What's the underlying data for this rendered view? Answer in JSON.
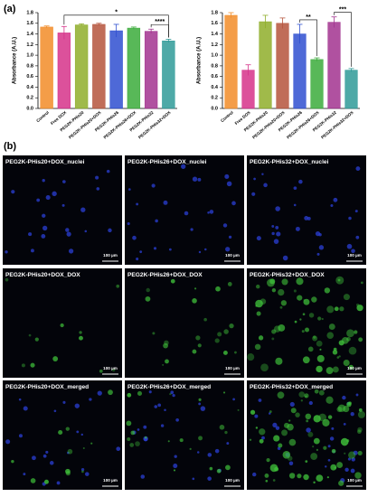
{
  "panel_labels": [
    "(a)",
    "(b)"
  ],
  "chart_data": [
    {
      "type": "bar",
      "y_label": "Absorbance (A.U.)",
      "categories": [
        "Control",
        "Free DOX",
        "PEG2K-PHis20",
        "PEG2K-PHis20+DOX",
        "PEG2K-PHis26",
        "PEG2K-PHis26+DOX",
        "PEG2K-PHis32",
        "PEG2K-PHis32+DOX"
      ],
      "series": [
        {
          "values": [
            1.53,
            1.42,
            1.57,
            1.58,
            1.46,
            1.51,
            1.45,
            1.27
          ],
          "errors": [
            0.02,
            0.12,
            0.02,
            0.02,
            0.12,
            0.02,
            0.04,
            0.03
          ]
        }
      ],
      "colors": [
        "#f28c28",
        "#d6338a",
        "#8fae2a",
        "#b5543c",
        "#2f4fd0",
        "#3bab3b",
        "#a2338f",
        "#2f9a98"
      ],
      "ylim": [
        0,
        1.8
      ],
      "yticks": [
        {
          "value": 0,
          "label": "0.0"
        },
        {
          "value": 0.2,
          "label": "0.2"
        },
        {
          "value": 0.4,
          "label": "0.4"
        },
        {
          "value": 0.6,
          "label": "0.6"
        },
        {
          "value": 0.8,
          "label": "0.8"
        },
        {
          "value": 1,
          "label": "1.0"
        },
        {
          "value": 1.2,
          "label": "1.2"
        },
        {
          "value": 1.4,
          "label": "1.4"
        },
        {
          "value": 1.6,
          "label": "1.6"
        },
        {
          "value": 1.8,
          "label": "1.8"
        }
      ],
      "annotations": [
        {
          "text": "*",
          "between": [
            "Free DOX",
            "PEG2K-PHis32+DOX"
          ]
        },
        {
          "text": "****",
          "between": [
            "PEG2K-PHis32",
            "PEG2K-PHis32+DOX"
          ]
        }
      ]
    },
    {
      "type": "bar",
      "y_label": "Absorbance (A.U.)",
      "categories": [
        "Control",
        "Free DOX",
        "PEG2K-PHis20",
        "PEG2K-PHis20+DOX",
        "PEG2K-PHis26",
        "PEG2K-PHis26+DOX",
        "PEG2K-PHis32",
        "PEG2K-PHis32+DOX"
      ],
      "series": [
        {
          "values": [
            1.75,
            0.72,
            1.63,
            1.6,
            1.4,
            0.92,
            1.62,
            0.72
          ],
          "errors": [
            0.05,
            0.1,
            0.12,
            0.1,
            0.18,
            0.03,
            0.1,
            0.03
          ]
        }
      ],
      "colors": [
        "#f28c28",
        "#d6338a",
        "#8fae2a",
        "#b5543c",
        "#2f4fd0",
        "#3bab3b",
        "#a2338f",
        "#2f9a98"
      ],
      "ylim": [
        0,
        1.8
      ],
      "yticks": [
        {
          "value": 0,
          "label": "0.0"
        },
        {
          "value": 0.2,
          "label": "0.2"
        },
        {
          "value": 0.4,
          "label": "0.4"
        },
        {
          "value": 0.6,
          "label": "0.6"
        },
        {
          "value": 0.8,
          "label": "0.8"
        },
        {
          "value": 1,
          "label": "1.0"
        },
        {
          "value": 1.2,
          "label": "1.2"
        },
        {
          "value": 1.4,
          "label": "1.4"
        },
        {
          "value": 1.6,
          "label": "1.6"
        },
        {
          "value": 1.8,
          "label": "1.8"
        }
      ],
      "annotations": [
        {
          "text": "**",
          "between": [
            "PEG2K-PHis26",
            "PEG2K-PHis26+DOX"
          ]
        },
        {
          "text": "***",
          "between": [
            "PEG2K-PHis32",
            "PEG2K-PHis32+DOX"
          ]
        }
      ]
    }
  ],
  "images": {
    "rows": [
      [
        "PEG2K-PHis20+DOX_nuclei",
        "PEG2K-PHis26+DOX_nuclei",
        "PEG2K-PHis32+DOX_nuclei"
      ],
      [
        "PEG2K-PHis20+DOX_DOX",
        "PEG2K-PHis26+DOX_DOX",
        "PEG2K-PHis32+DOX_DOX"
      ],
      [
        "PEG2K-PHis20+DOX_merged",
        "PEG2K-PHis26+DOX_merged",
        "PEG2K-PHis32+DOX_merged"
      ]
    ],
    "scale_bar": "100 µm"
  }
}
